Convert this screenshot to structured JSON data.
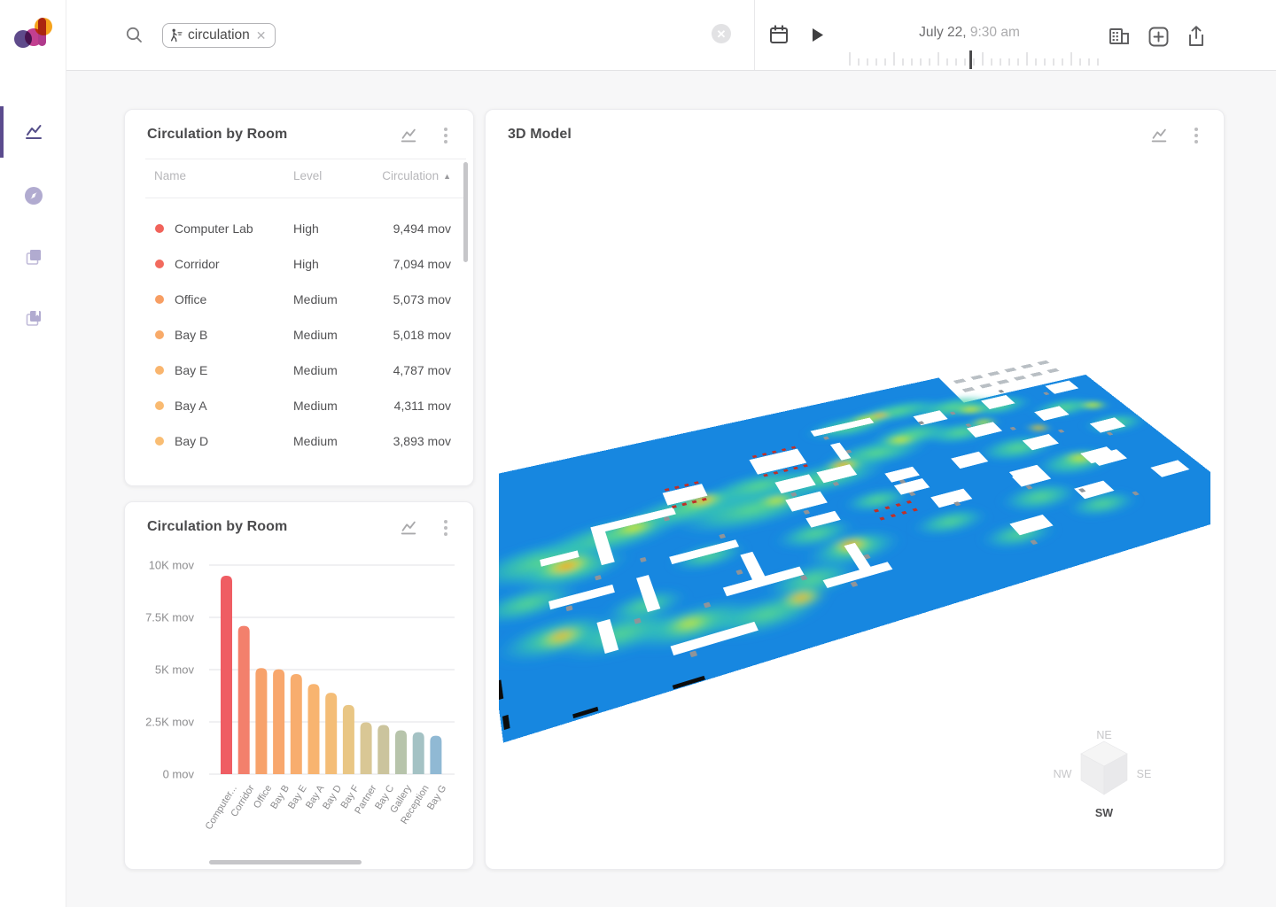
{
  "header": {
    "search_chip": {
      "label": "circulation"
    },
    "date": "July 22,",
    "time": "9:30 am"
  },
  "table_card": {
    "title": "Circulation by Room",
    "columns": {
      "name": "Name",
      "level": "Level",
      "value": "Circulation"
    },
    "sort_indicator": "▲",
    "rows": [
      {
        "name": "Computer Lab",
        "level": "High",
        "value": "9,494 mov",
        "dot": "#f1635b"
      },
      {
        "name": "Corridor",
        "level": "High",
        "value": "7,094 mov",
        "dot": "#f26a5e"
      },
      {
        "name": "Office",
        "level": "Medium",
        "value": "5,073 mov",
        "dot": "#f79e63"
      },
      {
        "name": "Bay B",
        "level": "Medium",
        "value": "5,018 mov",
        "dot": "#f8aa69"
      },
      {
        "name": "Bay E",
        "level": "Medium",
        "value": "4,787 mov",
        "dot": "#f9b56e"
      },
      {
        "name": "Bay A",
        "level": "Medium",
        "value": "4,311 mov",
        "dot": "#f9ba71"
      },
      {
        "name": "Bay D",
        "level": "Medium",
        "value": "3,893 mov",
        "dot": "#f9bd73"
      }
    ]
  },
  "chart_card": {
    "title": "Circulation by Room"
  },
  "model_card": {
    "title": "3D Model",
    "cube_labels": {
      "ne": "NE",
      "nw": "NW",
      "se": "SE",
      "sw": "SW"
    }
  },
  "chart_data": {
    "type": "bar",
    "title": "Circulation by Room",
    "categories": [
      "Computer...",
      "Corridor",
      "Office",
      "Bay B",
      "Bay E",
      "Bay A",
      "Bay D",
      "Bay F",
      "Partner",
      "Bay C",
      "Gallery",
      "Reception",
      "Bay G"
    ],
    "values": [
      9494,
      7094,
      5073,
      5018,
      4787,
      4311,
      3893,
      3310,
      2480,
      2350,
      2100,
      2010,
      1840
    ],
    "unit": "mov",
    "ylim": [
      0,
      10000
    ],
    "ytick_labels": [
      "10K mov",
      "7.5K mov",
      "5K mov",
      "2.5K mov",
      "0 mov"
    ],
    "grid": true,
    "legend": false,
    "bar_colors": [
      "#ef5d63",
      "#f3806c",
      "#f7a26b",
      "#f8a76d",
      "#f8ad6e",
      "#f8b470",
      "#f4bd77",
      "#e9c684",
      "#d9c795",
      "#cbc49d",
      "#b7c4ab",
      "#a4c2c4",
      "#90b9d4"
    ]
  },
  "colors": {
    "accent": "#5b4b8e",
    "heat_cold": "#1787e0",
    "inactive_icon": "#b1abd0"
  }
}
